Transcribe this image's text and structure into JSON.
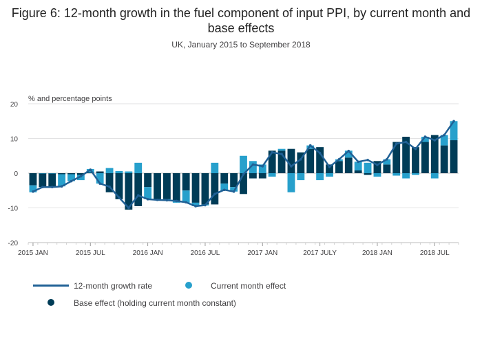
{
  "chart_data": {
    "type": "bar",
    "title": "Figure 6: 12-month growth in the fuel component of input PPI, by current month and base effects",
    "subtitle": "UK, January 2015 to September 2018",
    "ylabel": "% and percentage points",
    "ylim": [
      -20,
      20
    ],
    "yticks": [
      20,
      10,
      0,
      -10,
      -20
    ],
    "xtick_labels": [
      "2015 JAN",
      "2015 JUL",
      "2016 JAN",
      "2016 JUL",
      "2017 JAN",
      "2017 JULY",
      "2018 JAN",
      "2018 JUL"
    ],
    "xtick_positions": [
      0,
      6,
      12,
      18,
      24,
      30,
      36,
      42
    ],
    "n_months": 45,
    "colors": {
      "base": "#003c57",
      "current": "#27a0cc",
      "line": "#206095"
    },
    "series": [
      {
        "name": "Base effect (holding current month constant)",
        "values": [
          -3.5,
          -4.0,
          -4.0,
          -0.3,
          -0.3,
          -0.5,
          0.2,
          0.5,
          -5.5,
          -7.5,
          -10.5,
          -9.5,
          -4.0,
          -7.5,
          -7.5,
          -8.0,
          -5.0,
          -8.5,
          -9.0,
          -9.0,
          -3.0,
          -4.0,
          -6.0,
          -1.5,
          -1.5,
          6.5,
          6.5,
          7.0,
          6.0,
          7.0,
          7.5,
          2.5,
          3.5,
          4.5,
          0.8,
          -0.5,
          3.5,
          2.5,
          9.0,
          10.5,
          7.5,
          9.0,
          11.0,
          8.0,
          9.5
        ]
      },
      {
        "name": "Current month effect",
        "values": [
          -2.0,
          0.0,
          0.0,
          -3.5,
          -2.0,
          -1.5,
          1.0,
          -3.0,
          1.5,
          0.6,
          0.5,
          3.0,
          -3.5,
          -0.3,
          -0.3,
          -0.5,
          -3.5,
          -1.0,
          -0.3,
          3.0,
          -2.0,
          -1.3,
          5.0,
          3.5,
          2.5,
          -1.0,
          0.5,
          -5.5,
          -2.0,
          1.0,
          -2.0,
          -1.0,
          0.5,
          2.0,
          2.5,
          3.0,
          -1.0,
          1.5,
          -0.7,
          -1.5,
          -0.5,
          1.5,
          -1.5,
          3.0,
          5.5
        ]
      },
      {
        "name": "12-month growth rate",
        "values": [
          -5.3,
          -4.0,
          -4.0,
          -3.8,
          -2.3,
          -0.9,
          1.0,
          -3.0,
          -3.9,
          -7.0,
          -10.0,
          -6.4,
          -7.5,
          -7.7,
          -7.8,
          -8.0,
          -8.4,
          -9.5,
          -9.2,
          -6.0,
          -4.8,
          -5.3,
          -0.3,
          2.5,
          2.0,
          6.0,
          5.5,
          2.0,
          4.0,
          8.0,
          5.8,
          1.8,
          4.0,
          6.4,
          3.3,
          3.8,
          2.4,
          4.0,
          8.5,
          9.0,
          7.0,
          10.5,
          9.5,
          11.0,
          15.0
        ]
      }
    ]
  },
  "legend": {
    "line_label": "12-month growth rate",
    "current_label": "Current month effect",
    "base_label": "Base effect (holding current month constant)"
  }
}
